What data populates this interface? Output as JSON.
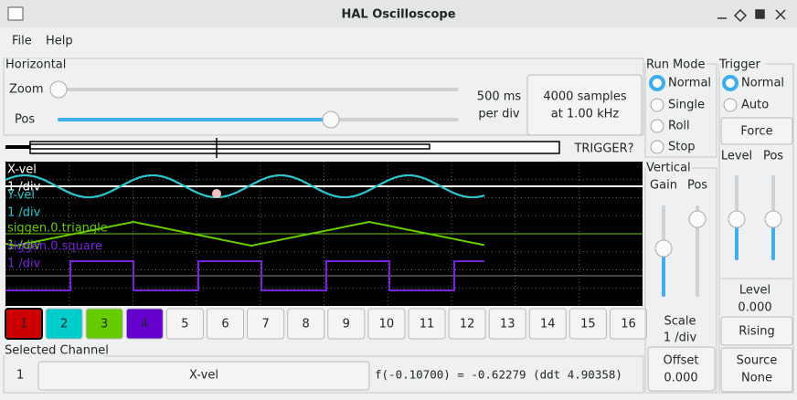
{
  "window": {
    "title": "HAL Oscilloscope"
  },
  "menu": [
    "File",
    "Help"
  ],
  "horizontal": {
    "title": "Horizontal",
    "zoom_label": "Zoom",
    "pos_label": "Pos",
    "rate": [
      "500 ms",
      "per div"
    ],
    "samples": [
      "4000 samples",
      "at 1.00 kHz"
    ],
    "trigger_status": "TRIGGER?"
  },
  "scope_labels": [
    "X-vel",
    "1 /div",
    "Y-vel",
    "1 /div",
    "siggen.0.triangle",
    "1 /div",
    "siggen.0.square",
    "1 /div"
  ],
  "channels": [
    "1",
    "2",
    "3",
    "4",
    "5",
    "6",
    "7",
    "8",
    "9",
    "10",
    "11",
    "12",
    "13",
    "14",
    "15",
    "16"
  ],
  "selected_channel": {
    "title": "Selected Channel",
    "number": "1",
    "name": "X-vel",
    "readout": "f(-0.10700) = -0.62279 (ddt  4.90358)"
  },
  "run_mode": {
    "title": "Run Mode",
    "options": [
      "Normal",
      "Single",
      "Roll",
      "Stop"
    ]
  },
  "vertical": {
    "title": "Vertical",
    "gain_label": "Gain",
    "pos_label": "Pos",
    "scale": [
      "Scale",
      "1 /div"
    ],
    "offset": [
      "Offset",
      "0.000"
    ]
  },
  "trigger": {
    "title": "Trigger",
    "options": [
      "Normal",
      "Auto"
    ],
    "force": "Force",
    "level_label": "Level",
    "pos_label": "Pos",
    "level_title": "Level",
    "level_value": "0.000",
    "edge": "Rising",
    "source": [
      "Source",
      "None"
    ]
  }
}
